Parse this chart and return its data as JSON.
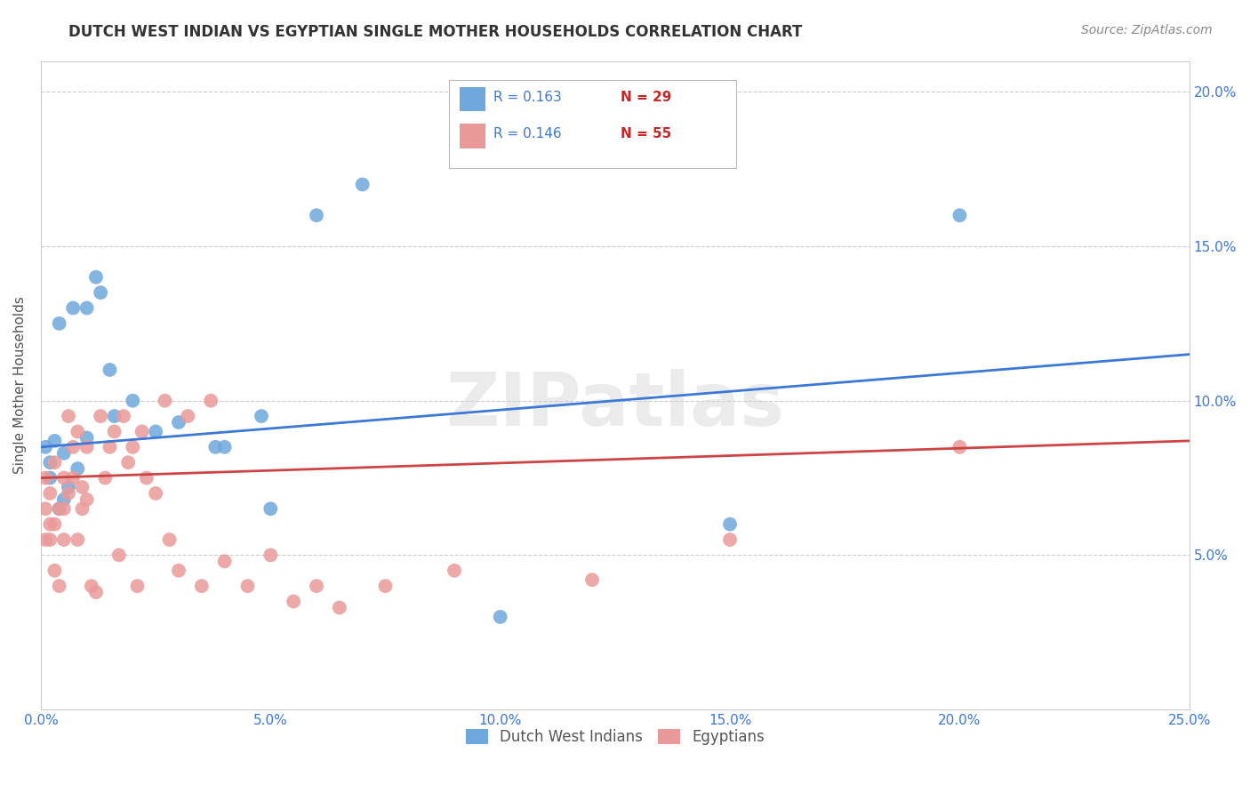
{
  "title": "DUTCH WEST INDIAN VS EGYPTIAN SINGLE MOTHER HOUSEHOLDS CORRELATION CHART",
  "source": "Source: ZipAtlas.com",
  "ylabel": "Single Mother Households",
  "xlim": [
    0.0,
    0.25
  ],
  "ylim": [
    0.0,
    0.21
  ],
  "blue_color": "#6fa8dc",
  "pink_color": "#ea9999",
  "blue_line_color": "#3c78d8",
  "pink_line_color": "#cc4444",
  "legend_blue_label": "Dutch West Indians",
  "legend_pink_label": "Egyptians",
  "legend_R1": "R = 0.163",
  "legend_N1": "N = 29",
  "legend_R2": "R = 0.146",
  "legend_N2": "N = 55",
  "watermark": "ZIPatlas",
  "grid_color": "#cccccc",
  "dutch_x": [
    0.001,
    0.002,
    0.002,
    0.003,
    0.004,
    0.004,
    0.005,
    0.005,
    0.006,
    0.007,
    0.008,
    0.01,
    0.01,
    0.012,
    0.013,
    0.015,
    0.016,
    0.02,
    0.025,
    0.03,
    0.038,
    0.04,
    0.048,
    0.05,
    0.06,
    0.07,
    0.1,
    0.15,
    0.2
  ],
  "dutch_y": [
    0.085,
    0.08,
    0.075,
    0.087,
    0.065,
    0.125,
    0.068,
    0.083,
    0.072,
    0.13,
    0.078,
    0.088,
    0.13,
    0.14,
    0.135,
    0.11,
    0.095,
    0.1,
    0.09,
    0.093,
    0.085,
    0.085,
    0.095,
    0.065,
    0.16,
    0.17,
    0.03,
    0.06,
    0.16
  ],
  "egyptian_x": [
    0.001,
    0.001,
    0.001,
    0.002,
    0.002,
    0.002,
    0.003,
    0.003,
    0.003,
    0.004,
    0.004,
    0.005,
    0.005,
    0.005,
    0.006,
    0.006,
    0.007,
    0.007,
    0.008,
    0.008,
    0.009,
    0.009,
    0.01,
    0.01,
    0.011,
    0.012,
    0.013,
    0.014,
    0.015,
    0.016,
    0.017,
    0.018,
    0.019,
    0.02,
    0.021,
    0.022,
    0.023,
    0.025,
    0.027,
    0.028,
    0.03,
    0.032,
    0.035,
    0.037,
    0.04,
    0.045,
    0.05,
    0.055,
    0.06,
    0.065,
    0.075,
    0.09,
    0.12,
    0.15,
    0.2
  ],
  "egyptian_y": [
    0.065,
    0.055,
    0.075,
    0.055,
    0.06,
    0.07,
    0.06,
    0.045,
    0.08,
    0.04,
    0.065,
    0.065,
    0.075,
    0.055,
    0.07,
    0.095,
    0.075,
    0.085,
    0.055,
    0.09,
    0.072,
    0.065,
    0.085,
    0.068,
    0.04,
    0.038,
    0.095,
    0.075,
    0.085,
    0.09,
    0.05,
    0.095,
    0.08,
    0.085,
    0.04,
    0.09,
    0.075,
    0.07,
    0.1,
    0.055,
    0.045,
    0.095,
    0.04,
    0.1,
    0.048,
    0.04,
    0.05,
    0.035,
    0.04,
    0.033,
    0.04,
    0.045,
    0.042,
    0.055,
    0.085
  ],
  "dutch_line_x0": 0.0,
  "dutch_line_y0": 0.085,
  "dutch_line_x1": 0.25,
  "dutch_line_y1": 0.115,
  "egyptian_line_x0": 0.0,
  "egyptian_line_y0": 0.075,
  "egyptian_line_x1": 0.25,
  "egyptian_line_y1": 0.087
}
